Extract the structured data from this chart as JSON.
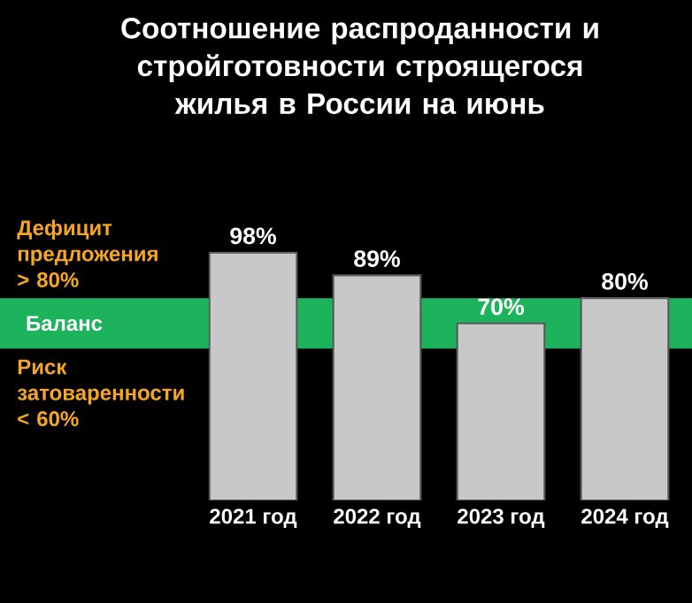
{
  "chart_data": {
    "type": "bar",
    "title": "Соотношение распроданности и стройготовности строящегося жилья в России на июнь",
    "categories": [
      "2021 год",
      "2022 год",
      "2023 год",
      "2024 год"
    ],
    "values": [
      98,
      89,
      70,
      80
    ],
    "value_labels": [
      "98%",
      "89%",
      "70%",
      "80%"
    ],
    "color": "#c8c8c8",
    "bands": [
      {
        "axis": "y",
        "from": 60,
        "to": 80,
        "label": "Баланс",
        "color": "#1db35c"
      }
    ],
    "annotations": [
      "Дефицит предложения > 80%",
      "Риск затоваренности < 60%"
    ]
  }
}
